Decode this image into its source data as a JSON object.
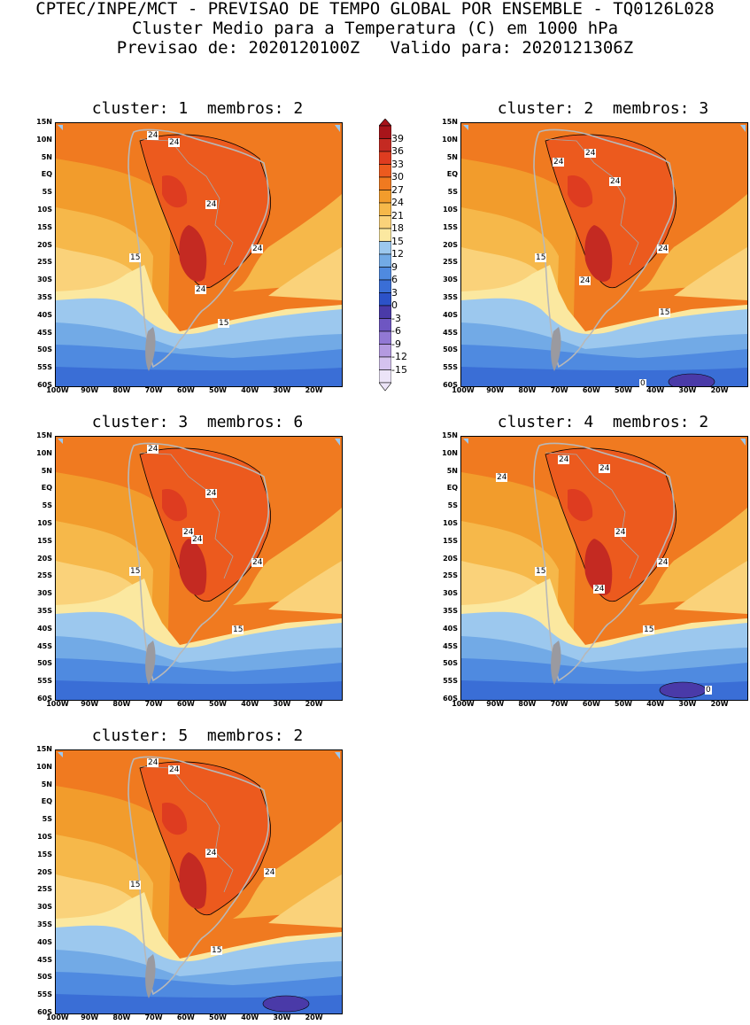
{
  "header": {
    "line1": "CPTEC/INPE/MCT - PREVISAO DE TEMPO GLOBAL POR ENSEMBLE - TQ0126L028",
    "line2": "Cluster Medio para a Temperatura (C) em 1000 hPa",
    "line3": "Previsao de: 2020120100Z   Valido para: 2020121306Z"
  },
  "panels": [
    {
      "title": "cluster: 1  membros: 2",
      "contour_labels": [
        "24",
        "24",
        "24",
        "24",
        "24",
        "15",
        "15"
      ]
    },
    {
      "title": "cluster: 2  membros: 3",
      "contour_labels": [
        "24",
        "24",
        "24",
        "24",
        "24",
        "15",
        "15",
        "0"
      ]
    },
    {
      "title": "cluster: 3  membros: 6",
      "contour_labels": [
        "24",
        "24",
        "24",
        "24",
        "24",
        "15",
        "15"
      ]
    },
    {
      "title": "cluster: 4  membros: 2",
      "contour_labels": [
        "24",
        "24",
        "24",
        "24",
        "24",
        "24",
        "15",
        "15",
        "0"
      ]
    },
    {
      "title": "cluster: 5  membros: 2",
      "contour_labels": [
        "24",
        "24",
        "24",
        "24",
        "15",
        "15"
      ]
    }
  ],
  "axes": {
    "lat_labels": [
      "15N",
      "10N",
      "5N",
      "EQ",
      "5S",
      "10S",
      "15S",
      "20S",
      "25S",
      "30S",
      "35S",
      "40S",
      "45S",
      "50S",
      "55S",
      "60S"
    ],
    "lon_labels": [
      "100W",
      "90W",
      "80W",
      "70W",
      "60W",
      "50W",
      "40W",
      "30W",
      "20W"
    ]
  },
  "colorbar": {
    "ticks": [
      "39",
      "36",
      "33",
      "30",
      "27",
      "24",
      "21",
      "18",
      "15",
      "12",
      "9",
      "6",
      "3",
      "0",
      "-3",
      "-6",
      "-9",
      "-12",
      "-15"
    ],
    "colors": [
      "#a8141a",
      "#c42a22",
      "#de3c20",
      "#ec5a1e",
      "#f07a20",
      "#f29c2c",
      "#f6b84a",
      "#fad27a",
      "#fbe8a0",
      "#9cc8ee",
      "#72aae6",
      "#4f8ae0",
      "#3a6ed6",
      "#2c52c8",
      "#4a3aa8",
      "#6e56c2",
      "#9278d4",
      "#b49ae0",
      "#d4c2ee",
      "#ece4f8"
    ]
  }
}
